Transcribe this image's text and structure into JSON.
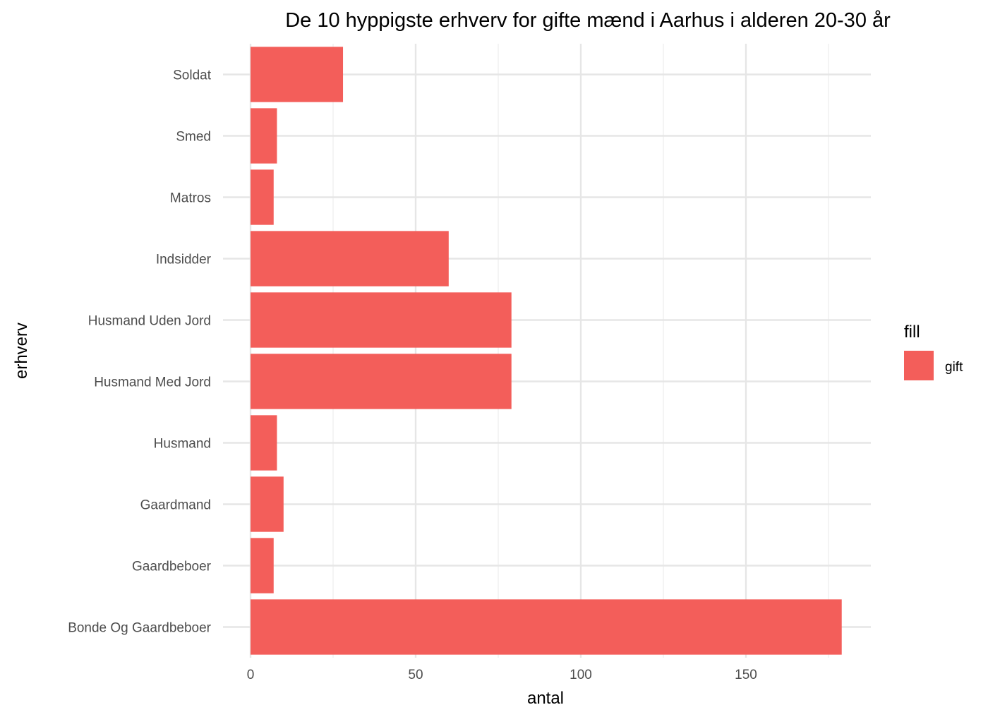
{
  "chart_data": {
    "type": "bar",
    "orientation": "horizontal",
    "title": "De 10 hyppigste erhverv for gifte mænd i Aarhus i alderen 20-30 år",
    "xlabel": "antal",
    "ylabel": "erhverv",
    "categories": [
      "Bonde Og Gaardbeboer",
      "Gaardbeboer",
      "Gaardmand",
      "Husmand",
      "Husmand Med Jord",
      "Husmand Uden Jord",
      "Indsidder",
      "Matros",
      "Smed",
      "Soldat"
    ],
    "series": [
      {
        "name": "gift",
        "color": "#F35E5A",
        "values": [
          179,
          7,
          10,
          8,
          79,
          79,
          60,
          7,
          8,
          28
        ]
      }
    ],
    "xlim": [
      0,
      188
    ],
    "xticks": [
      0,
      50,
      100,
      150
    ],
    "grid": true,
    "legend": {
      "title": "fill",
      "position": "right",
      "entries": [
        "gift"
      ]
    }
  }
}
